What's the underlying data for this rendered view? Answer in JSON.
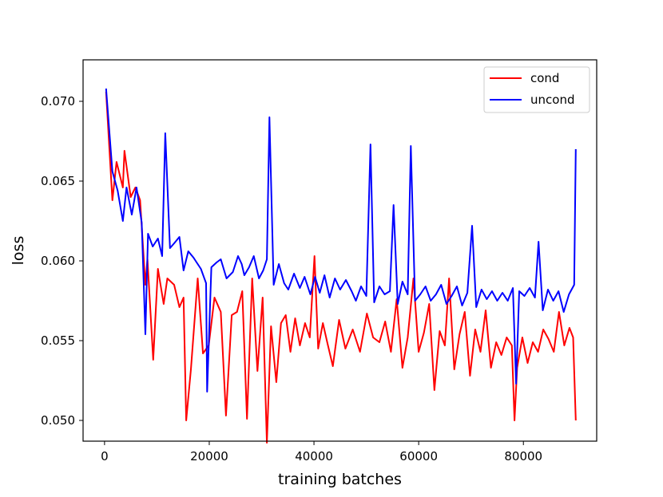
{
  "chart_data": {
    "type": "line",
    "title": "",
    "xlabel": "training batches",
    "ylabel": "loss",
    "xlim": [
      -4100,
      94000
    ],
    "ylim": [
      0.0487,
      0.0726
    ],
    "xticks": [
      0,
      20000,
      40000,
      60000,
      80000
    ],
    "yticks": [
      0.05,
      0.055,
      0.06,
      0.065,
      0.07
    ],
    "xtick_labels": [
      "0",
      "20000",
      "40000",
      "60000",
      "80000"
    ],
    "ytick_labels": [
      "0.050",
      "0.055",
      "0.060",
      "0.065",
      "0.070"
    ],
    "grid": false,
    "legend_position": "top-right",
    "series": [
      {
        "name": "cond",
        "color": "#ff0000",
        "x": [
          300,
          1500,
          2300,
          3500,
          3800,
          5000,
          5900,
          6800,
          7800,
          8200,
          9300,
          10200,
          11300,
          12000,
          13300,
          14300,
          15100,
          15600,
          16500,
          17800,
          18800,
          19900,
          21000,
          22200,
          23200,
          24300,
          25300,
          26300,
          27200,
          28200,
          29200,
          30200,
          31000,
          31800,
          32800,
          33700,
          34600,
          35500,
          36400,
          37300,
          38300,
          39200,
          40100,
          40800,
          41700,
          42600,
          43600,
          44800,
          46000,
          47400,
          48800,
          50100,
          51300,
          52500,
          53600,
          54700,
          55800,
          56900,
          57900,
          59000,
          60000,
          61000,
          62000,
          63000,
          64000,
          65000,
          65800,
          66800,
          67800,
          68800,
          69800,
          70800,
          71800,
          72800,
          73800,
          74800,
          75800,
          76800,
          77800,
          78300,
          78800,
          79800,
          80800,
          81800,
          82800,
          83800,
          84800,
          85800,
          86800,
          87800,
          88800,
          89500,
          90000
        ],
        "y": [
          0.0706,
          0.0638,
          0.0662,
          0.0646,
          0.0669,
          0.064,
          0.0646,
          0.0638,
          0.0585,
          0.0601,
          0.0538,
          0.0595,
          0.0573,
          0.0589,
          0.0585,
          0.0571,
          0.0577,
          0.05,
          0.0532,
          0.0589,
          0.0542,
          0.0547,
          0.0577,
          0.0568,
          0.0503,
          0.0566,
          0.0568,
          0.0581,
          0.0501,
          0.0589,
          0.0531,
          0.0577,
          0.0486,
          0.0559,
          0.0524,
          0.0561,
          0.0566,
          0.0543,
          0.0564,
          0.0547,
          0.0561,
          0.0552,
          0.0603,
          0.0545,
          0.0561,
          0.0548,
          0.0534,
          0.0563,
          0.0545,
          0.0557,
          0.0543,
          0.0567,
          0.0552,
          0.0549,
          0.0562,
          0.0543,
          0.0576,
          0.0533,
          0.0552,
          0.0589,
          0.0543,
          0.0555,
          0.0573,
          0.0519,
          0.0556,
          0.0547,
          0.0589,
          0.0532,
          0.0554,
          0.0568,
          0.0528,
          0.0557,
          0.0543,
          0.0569,
          0.0533,
          0.0549,
          0.0541,
          0.0552,
          0.0547,
          0.05,
          0.0533,
          0.0552,
          0.0536,
          0.0549,
          0.0543,
          0.0557,
          0.0551,
          0.0543,
          0.0568,
          0.0547,
          0.0558,
          0.0552,
          0.05
        ]
      },
      {
        "name": "uncond",
        "color": "#0000ff",
        "x": [
          300,
          1500,
          2500,
          3500,
          4200,
          5200,
          6100,
          7100,
          7800,
          8300,
          9200,
          10200,
          11000,
          11600,
          12500,
          13300,
          14300,
          15100,
          16000,
          17000,
          17600,
          18400,
          19400,
          19600,
          20400,
          21400,
          22200,
          23300,
          24500,
          25500,
          26200,
          26700,
          27600,
          28500,
          29500,
          30300,
          31000,
          31500,
          32300,
          33300,
          34300,
          35100,
          36200,
          37300,
          38200,
          39300,
          40200,
          41100,
          42000,
          43000,
          44000,
          45000,
          46100,
          47200,
          48000,
          49000,
          50000,
          50800,
          51500,
          52500,
          53500,
          54500,
          55200,
          56000,
          56900,
          57900,
          58500,
          59300,
          60300,
          61300,
          62300,
          63300,
          64300,
          65300,
          66300,
          67300,
          68300,
          69300,
          70200,
          71000,
          72000,
          73000,
          74000,
          75000,
          76000,
          77000,
          78000,
          78600,
          79200,
          80200,
          81200,
          82200,
          82900,
          83700,
          84700,
          85700,
          86700,
          87700,
          88700,
          89700,
          90000
        ],
        "y": [
          0.0708,
          0.0656,
          0.0644,
          0.0625,
          0.0646,
          0.0629,
          0.0646,
          0.0624,
          0.0554,
          0.0617,
          0.0609,
          0.0614,
          0.0603,
          0.068,
          0.0608,
          0.0611,
          0.0615,
          0.0594,
          0.0606,
          0.0602,
          0.0599,
          0.0595,
          0.0586,
          0.0518,
          0.0596,
          0.0599,
          0.0601,
          0.0589,
          0.0593,
          0.0603,
          0.0598,
          0.0591,
          0.0596,
          0.0603,
          0.0589,
          0.0594,
          0.0601,
          0.069,
          0.0585,
          0.0598,
          0.0586,
          0.0582,
          0.0592,
          0.0583,
          0.059,
          0.0579,
          0.059,
          0.058,
          0.0591,
          0.0577,
          0.0589,
          0.0582,
          0.0588,
          0.0581,
          0.0575,
          0.0584,
          0.0578,
          0.0673,
          0.0574,
          0.0584,
          0.0579,
          0.0581,
          0.0635,
          0.0573,
          0.0587,
          0.0579,
          0.0672,
          0.0575,
          0.0579,
          0.0584,
          0.0575,
          0.0579,
          0.0585,
          0.0573,
          0.0578,
          0.0584,
          0.0572,
          0.058,
          0.0622,
          0.0571,
          0.0582,
          0.0576,
          0.0581,
          0.0575,
          0.058,
          0.0575,
          0.0583,
          0.0523,
          0.0581,
          0.0578,
          0.0583,
          0.0577,
          0.0612,
          0.0569,
          0.0582,
          0.0575,
          0.0581,
          0.0568,
          0.0579,
          0.0585,
          0.067
        ]
      }
    ]
  }
}
